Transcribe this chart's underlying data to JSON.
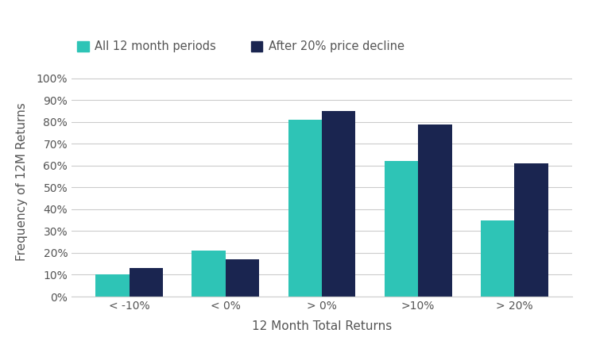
{
  "categories": [
    "< -10%",
    "< 0%",
    "> 0%",
    ">10%",
    "> 20%"
  ],
  "all_periods": [
    10,
    21,
    81,
    62,
    35
  ],
  "after_decline": [
    13,
    17,
    85,
    79,
    61
  ],
  "color_all": "#2ec4b6",
  "color_decline": "#1a2550",
  "legend_label_all": "All 12 month periods",
  "legend_label_decline": "After 20% price decline",
  "xlabel": "12 Month Total Returns",
  "ylabel": "Frequency of 12M Returns",
  "yticks": [
    0,
    10,
    20,
    30,
    40,
    50,
    60,
    70,
    80,
    90,
    100
  ],
  "ylim": [
    0,
    105
  ],
  "background_color": "#ffffff",
  "bar_width": 0.35,
  "x_positions": [
    0,
    1,
    2,
    3,
    4
  ],
  "tick_fontsize": 10,
  "label_fontsize": 11,
  "legend_fontsize": 10.5,
  "text_color": "#555555",
  "grid_color": "#cccccc"
}
